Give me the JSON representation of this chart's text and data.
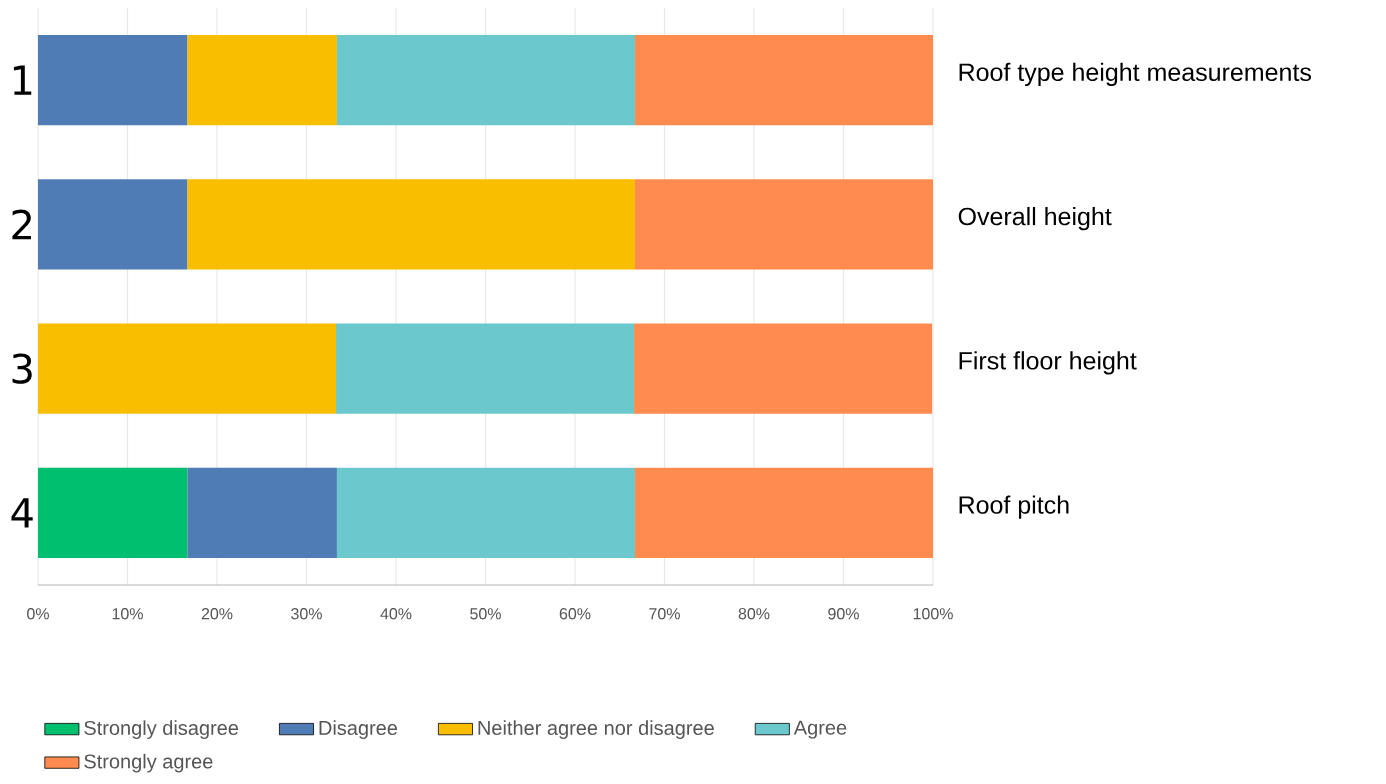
{
  "chart_data": {
    "type": "bar",
    "orientation": "horizontal",
    "stacked": true,
    "categories": [
      "1",
      "2",
      "3",
      "4"
    ],
    "series": [
      {
        "name": "Strongly disagree",
        "color": "#00bf6f",
        "values": [
          null,
          null,
          null,
          16.7
        ]
      },
      {
        "name": "Disagree",
        "color": "#507cb6",
        "values": [
          16.7,
          16.7,
          null,
          16.7
        ]
      },
      {
        "name": "Neither agree nor disagree",
        "color": "#f9be00",
        "values": [
          16.7,
          50,
          33.3,
          null
        ]
      },
      {
        "name": "Agree",
        "color": "#6bc8cd",
        "values": [
          33.3,
          null,
          33.3,
          33.3
        ]
      },
      {
        "name": "Strongly agree",
        "color": "#ff8b4f",
        "values": [
          33.3,
          33.3,
          33.3,
          33.3
        ]
      }
    ],
    "xlim": [
      0,
      100
    ],
    "xticks": [
      {
        "value": 0,
        "label": "0%"
      },
      {
        "value": 10,
        "label": "10%"
      },
      {
        "value": 20,
        "label": "20%"
      },
      {
        "value": 30,
        "label": "30%"
      },
      {
        "value": 40,
        "label": "40%"
      },
      {
        "value": 50,
        "label": "50%"
      },
      {
        "value": 60,
        "label": "60%"
      },
      {
        "value": 70,
        "label": "70%"
      },
      {
        "value": 80,
        "label": "80%"
      },
      {
        "value": 90,
        "label": "90%"
      },
      {
        "value": 100,
        "label": "100%"
      }
    ],
    "grid": "x",
    "legend": "bottom",
    "annotations": [
      "Roof type height measurements",
      "Overall height",
      "First floor height",
      "Roof pitch"
    ]
  }
}
